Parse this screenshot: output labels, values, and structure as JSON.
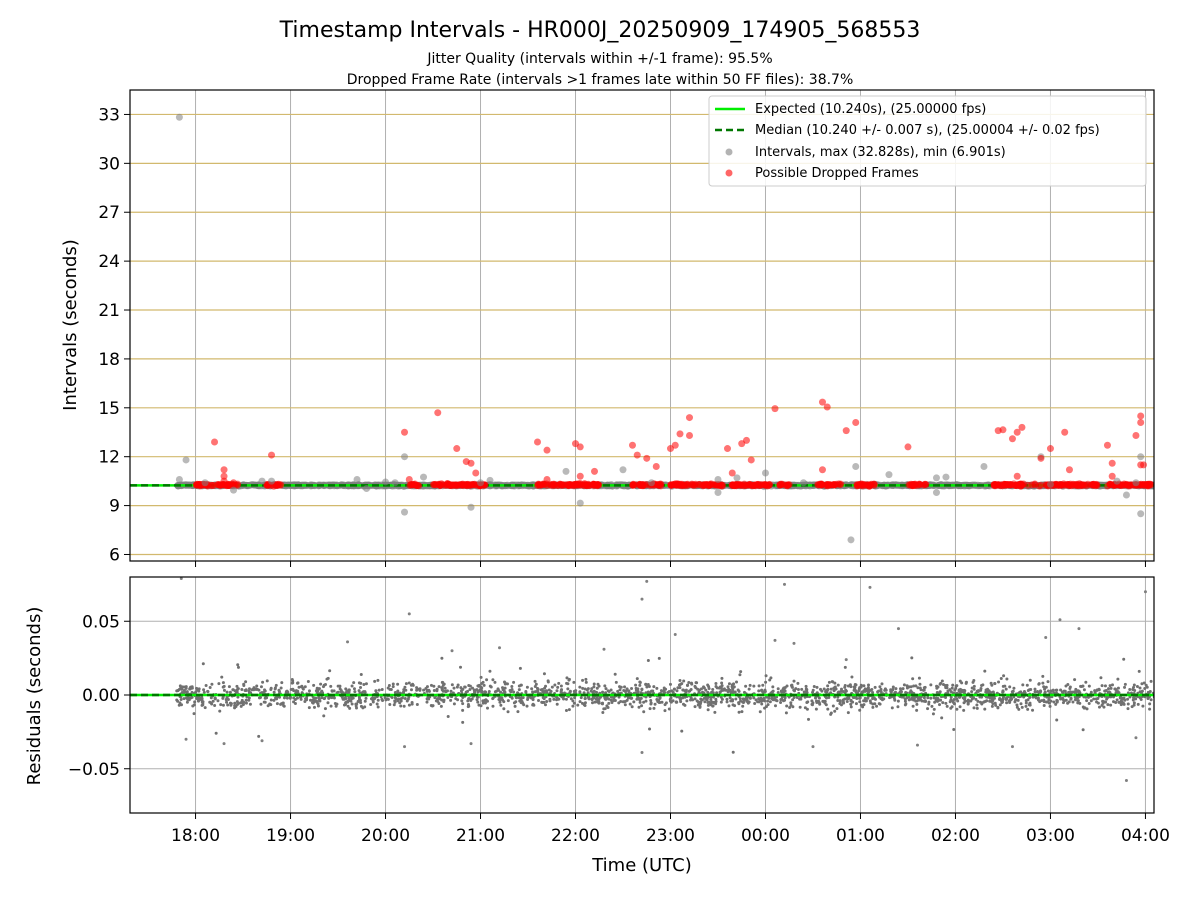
{
  "chart_data": [
    {
      "type": "scatter",
      "title": "Timestamp Intervals - HR000J_20250909_174905_568553",
      "subtitle_1": "Jitter Quality (intervals within +/-1 frame): 95.5%",
      "subtitle_2": "Dropped Frame Rate (intervals >1 frames late within 50 FF files): 38.7%",
      "ylabel": "Intervals (seconds)",
      "ylim": [
        5.6,
        34.5
      ],
      "xlim": [
        17.31,
        28.09
      ],
      "yticks": [
        6,
        9,
        12,
        15,
        18,
        21,
        24,
        27,
        30,
        33
      ],
      "ytick_labels": [
        "6",
        "9",
        "12",
        "15",
        "18",
        "21",
        "24",
        "27",
        "30",
        "33"
      ],
      "grid": true,
      "legend_position": "top-right",
      "legend": [
        "Expected (10.240s), (25.00000 fps)",
        "Median (10.240 +/- 0.007 s), (25.00004 +/- 0.02 fps)",
        "Intervals, max (32.828s), min (6.901s)",
        "Possible Dropped Frames"
      ],
      "expected_interval": 10.24,
      "median_interval": 10.24,
      "series": [
        {
          "name": "Intervals, max (32.828s), min (6.901s)",
          "color": "#808080",
          "points": [
            [
              17.83,
              32.83
            ],
            [
              17.83,
              10.6
            ],
            [
              17.9,
              11.8
            ],
            [
              18.1,
              10.4
            ],
            [
              18.4,
              9.95
            ],
            [
              18.7,
              10.5
            ],
            [
              18.8,
              10.5
            ],
            [
              19.7,
              10.6
            ],
            [
              19.8,
              10.05
            ],
            [
              20.0,
              10.45
            ],
            [
              20.1,
              10.4
            ],
            [
              20.2,
              8.6
            ],
            [
              20.2,
              12.0
            ],
            [
              20.4,
              10.75
            ],
            [
              20.9,
              8.9
            ],
            [
              21.0,
              10.4
            ],
            [
              21.1,
              10.55
            ],
            [
              21.9,
              11.1
            ],
            [
              22.05,
              9.15
            ],
            [
              22.5,
              11.2
            ],
            [
              22.8,
              10.4
            ],
            [
              23.5,
              10.6
            ],
            [
              23.5,
              9.8
            ],
            [
              23.7,
              10.7
            ],
            [
              24.0,
              11.0
            ],
            [
              24.4,
              10.4
            ],
            [
              24.9,
              6.9
            ],
            [
              24.95,
              11.4
            ],
            [
              25.3,
              10.9
            ],
            [
              25.8,
              10.7
            ],
            [
              25.8,
              9.8
            ],
            [
              25.9,
              10.75
            ],
            [
              26.3,
              11.4
            ],
            [
              26.9,
              12.0
            ],
            [
              27.0,
              10.3
            ],
            [
              27.7,
              10.5
            ],
            [
              27.8,
              9.65
            ],
            [
              27.9,
              10.4
            ],
            [
              27.95,
              8.5
            ],
            [
              27.95,
              12.0
            ]
          ]
        },
        {
          "name": "Possible Dropped Frames",
          "color": "#ff0000",
          "points": [
            [
              18.2,
              12.9
            ],
            [
              18.3,
              11.2
            ],
            [
              18.3,
              10.8
            ],
            [
              18.3,
              10.5
            ],
            [
              18.4,
              10.4
            ],
            [
              18.8,
              12.1
            ],
            [
              20.2,
              13.5
            ],
            [
              20.25,
              10.6
            ],
            [
              20.55,
              14.7
            ],
            [
              20.75,
              12.5
            ],
            [
              20.85,
              11.7
            ],
            [
              20.9,
              11.6
            ],
            [
              20.95,
              11.0
            ],
            [
              21.6,
              12.9
            ],
            [
              21.7,
              12.4
            ],
            [
              21.7,
              10.6
            ],
            [
              22.0,
              12.8
            ],
            [
              22.05,
              12.6
            ],
            [
              22.05,
              10.8
            ],
            [
              22.2,
              11.1
            ],
            [
              22.6,
              12.7
            ],
            [
              22.65,
              12.1
            ],
            [
              22.75,
              11.9
            ],
            [
              22.85,
              11.4
            ],
            [
              23.0,
              12.5
            ],
            [
              23.05,
              12.7
            ],
            [
              23.1,
              13.4
            ],
            [
              23.2,
              14.4
            ],
            [
              23.2,
              13.3
            ],
            [
              23.6,
              12.5
            ],
            [
              23.65,
              11.0
            ],
            [
              23.75,
              12.8
            ],
            [
              23.8,
              13.0
            ],
            [
              23.85,
              11.8
            ],
            [
              24.1,
              14.95
            ],
            [
              24.6,
              15.35
            ],
            [
              24.6,
              11.2
            ],
            [
              24.65,
              15.05
            ],
            [
              24.85,
              13.6
            ],
            [
              24.95,
              14.1
            ],
            [
              25.5,
              12.6
            ],
            [
              26.45,
              13.6
            ],
            [
              26.5,
              13.65
            ],
            [
              26.6,
              13.1
            ],
            [
              26.65,
              13.5
            ],
            [
              26.7,
              13.8
            ],
            [
              26.65,
              10.8
            ],
            [
              26.9,
              11.9
            ],
            [
              27.0,
              12.5
            ],
            [
              27.15,
              13.5
            ],
            [
              27.2,
              11.2
            ],
            [
              27.6,
              12.7
            ],
            [
              27.65,
              11.6
            ],
            [
              27.65,
              10.8
            ],
            [
              27.9,
              13.3
            ],
            [
              27.95,
              14.5
            ],
            [
              27.95,
              14.1
            ],
            [
              27.95,
              11.5
            ],
            [
              27.98,
              11.5
            ]
          ]
        }
      ]
    },
    {
      "type": "scatter",
      "xlabel": "Time (UTC)",
      "ylabel": "Residuals (seconds)",
      "ylim": [
        -0.08,
        0.08
      ],
      "xlim": [
        17.31,
        28.09
      ],
      "yticks": [
        -0.05,
        0.0,
        0.05
      ],
      "ytick_labels": [
        "−0.05",
        "0.00",
        "0.05"
      ],
      "xtick_values": [
        18,
        19,
        20,
        21,
        22,
        23,
        24,
        25,
        26,
        27,
        28
      ],
      "xticks": [
        "18:00",
        "19:00",
        "20:00",
        "21:00",
        "22:00",
        "23:00",
        "00:00",
        "01:00",
        "02:00",
        "03:00",
        "04:00"
      ],
      "grid": true,
      "series": [
        {
          "name": "",
          "color": "#808080",
          "points": [
            [
              17.85,
              0.079
            ],
            [
              20.25,
              0.055
            ],
            [
              22.75,
              0.077
            ],
            [
              22.7,
              0.065
            ],
            [
              23.05,
              0.041
            ],
            [
              24.1,
              0.037
            ],
            [
              24.2,
              0.075
            ],
            [
              24.3,
              0.035
            ],
            [
              24.85,
              0.024
            ],
            [
              25.1,
              0.073
            ],
            [
              25.4,
              0.045
            ],
            [
              27.1,
              0.051
            ],
            [
              26.95,
              0.039
            ],
            [
              27.3,
              0.045
            ],
            [
              28.0,
              0.07
            ],
            [
              19.6,
              0.036
            ],
            [
              20.7,
              0.03
            ],
            [
              21.2,
              0.032
            ],
            [
              22.3,
              0.031
            ],
            [
              27.8,
              -0.058
            ],
            [
              22.7,
              -0.039
            ],
            [
              18.3,
              -0.033
            ],
            [
              18.7,
              -0.031
            ],
            [
              20.2,
              -0.035
            ],
            [
              27.9,
              -0.029
            ],
            [
              17.9,
              -0.03
            ],
            [
              26.6,
              -0.035
            ],
            [
              20.9,
              -0.033
            ],
            [
              24.5,
              -0.035
            ],
            [
              25.6,
              -0.034
            ]
          ]
        }
      ]
    }
  ]
}
